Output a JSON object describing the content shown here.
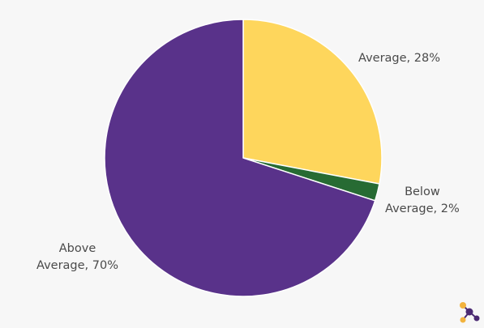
{
  "chart_data": {
    "type": "pie",
    "slices": [
      {
        "label_lines": [
          "Average, 28%"
        ],
        "value": 28,
        "color": "#fed65c"
      },
      {
        "label_lines": [
          "Below",
          "Average, 2%"
        ],
        "value": 2,
        "color": "#276b33"
      },
      {
        "label_lines": [
          "Above",
          "Average, 70%"
        ],
        "value": 70,
        "color": "#59328a"
      }
    ],
    "start_angle_deg": 0,
    "direction": "clockwise",
    "slice_stroke": "#ffffff"
  },
  "logo": {
    "icon": "network-nodes-icon",
    "colors": [
      "#f2b33d",
      "#4b2a73"
    ]
  }
}
